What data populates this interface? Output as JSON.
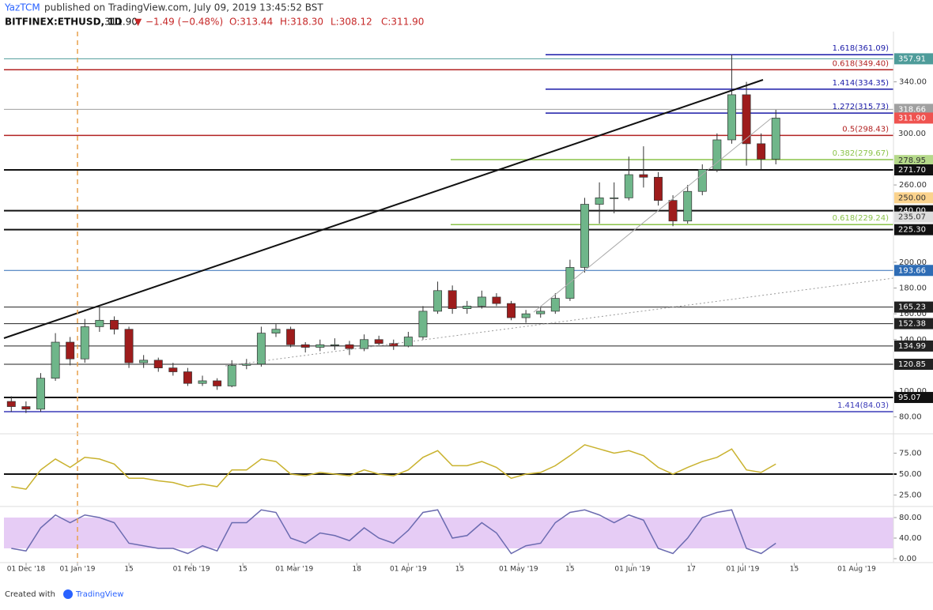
{
  "header": {
    "account": "YazTCM",
    "published": "published on TradingView.com, July 09, 2019 13:45:52 BST",
    "symbol": "BITFINEX:ETHUSD, 1D",
    "last": "311.90",
    "change": "−1.49 (−0.48%)",
    "ohlc": [
      "O:313.44",
      "H:318.30",
      "L:308.12",
      "C:311.90"
    ]
  },
  "footer": {
    "created": "Created with",
    "brand": "TradingView"
  },
  "chart_data": {
    "type": "candlestick",
    "x": [
      "2018-12-12",
      "2018-12-16",
      "2018-12-20",
      "2018-12-24",
      "2018-12-28",
      "2019-01-01",
      "2019-01-05",
      "2019-01-09",
      "2019-01-13",
      "2019-01-17",
      "2019-01-21",
      "2019-01-25",
      "2019-01-29",
      "2019-02-02",
      "2019-02-06",
      "2019-02-10",
      "2019-02-14",
      "2019-02-18",
      "2019-02-22",
      "2019-02-26",
      "2019-03-02",
      "2019-03-06",
      "2019-03-10",
      "2019-03-14",
      "2019-03-18",
      "2019-03-22",
      "2019-03-26",
      "2019-03-30",
      "2019-04-03",
      "2019-04-07",
      "2019-04-11",
      "2019-04-15",
      "2019-04-19",
      "2019-04-23",
      "2019-04-27",
      "2019-05-01",
      "2019-05-05",
      "2019-05-09",
      "2019-05-13",
      "2019-05-17",
      "2019-05-21",
      "2019-05-25",
      "2019-05-29",
      "2019-06-02",
      "2019-06-06",
      "2019-06-10",
      "2019-06-14",
      "2019-06-18",
      "2019-06-22",
      "2019-06-26",
      "2019-06-30",
      "2019-07-04",
      "2019-07-08"
    ],
    "open": [
      92,
      88,
      86,
      110,
      138,
      125,
      150,
      155,
      148,
      122,
      124,
      118,
      115,
      106,
      108,
      104,
      120,
      121,
      145,
      148,
      136,
      134,
      136,
      136,
      133,
      140,
      137,
      135,
      142,
      162,
      178,
      164,
      166,
      173,
      168,
      157,
      160,
      162,
      172,
      196,
      245,
      250,
      250,
      268,
      266,
      248,
      232,
      255,
      272,
      295,
      330,
      292,
      280
    ],
    "high": [
      96,
      92,
      114,
      145,
      142,
      156,
      165,
      158,
      150,
      128,
      126,
      122,
      118,
      112,
      110,
      124,
      125,
      150,
      152,
      150,
      138,
      140,
      141,
      139,
      144,
      143,
      140,
      146,
      166,
      185,
      182,
      170,
      178,
      176,
      170,
      163,
      166,
      176,
      202,
      250,
      262,
      262,
      282,
      290,
      270,
      252,
      260,
      276,
      300,
      361.09,
      340,
      300,
      318.3
    ],
    "low": [
      84,
      83,
      84,
      108,
      120,
      122,
      146,
      144,
      118,
      118,
      115,
      112,
      104,
      104,
      101,
      103,
      117,
      119,
      142,
      134,
      130,
      131,
      132,
      128,
      131,
      135,
      132,
      134,
      140,
      160,
      160,
      160,
      164,
      166,
      155,
      153,
      157,
      160,
      170,
      192,
      230,
      238,
      248,
      258,
      244,
      228,
      230,
      252,
      270,
      292,
      275,
      272,
      276
    ],
    "close": [
      88,
      86,
      110,
      138,
      125,
      150,
      155,
      148,
      122,
      124,
      118,
      115,
      106,
      108,
      104,
      120,
      121,
      145,
      148,
      136,
      134,
      136,
      136,
      133,
      140,
      137,
      135,
      142,
      162,
      178,
      164,
      166,
      173,
      168,
      157,
      160,
      162,
      172,
      196,
      245,
      250,
      250,
      268,
      266,
      248,
      232,
      255,
      272,
      295,
      330,
      292,
      280,
      311.9
    ],
    "up_color": "#6fb68a",
    "down_color": "#9e1c1c",
    "xlim": [
      "2018-12-12",
      "2019-08-11"
    ],
    "xticks": [
      {
        "value": "2018-12-01",
        "label": "01 Dec '18"
      },
      {
        "value": "2019-01-01",
        "label": "01 Jan '19"
      },
      {
        "value": "2019-01-15",
        "label": "15"
      },
      {
        "value": "2019-02-01",
        "label": "01 Feb '19"
      },
      {
        "value": "2019-02-15",
        "label": "15"
      },
      {
        "value": "2019-03-01",
        "label": "01 Mar '19"
      },
      {
        "value": "2019-03-18",
        "label": "18"
      },
      {
        "value": "2019-04-01",
        "label": "01 Apr '19"
      },
      {
        "value": "2019-04-15",
        "label": "15"
      },
      {
        "value": "2019-05-01",
        "label": "01 May '19"
      },
      {
        "value": "2019-05-15",
        "label": "15"
      },
      {
        "value": "2019-06-01",
        "label": "01 Jun '19"
      },
      {
        "value": "2019-06-17",
        "label": "17"
      },
      {
        "value": "2019-07-01",
        "label": "01 Jul '19"
      },
      {
        "value": "2019-07-15",
        "label": "15"
      },
      {
        "value": "2019-08-01",
        "label": "01 Aug '19"
      }
    ],
    "ylim": [
      67.5,
      379
    ],
    "yticks": [
      {
        "value": 80,
        "label": "80.00"
      },
      {
        "value": 100,
        "label": "100.00"
      },
      {
        "value": 140,
        "label": "140.00"
      },
      {
        "value": 160,
        "label": "160.00"
      },
      {
        "value": 180,
        "label": "180.00"
      },
      {
        "value": 200,
        "label": "200.00"
      },
      {
        "value": 260,
        "label": "260.00"
      },
      {
        "value": 300,
        "label": "300.00"
      },
      {
        "value": 340,
        "label": "340.00"
      }
    ],
    "levels": [
      {
        "value": 357.91,
        "label": "357.91",
        "color": "#4e9c9a",
        "line": true
      },
      {
        "value": 318.66,
        "label": "318.66",
        "color": "#a0a0a0",
        "line": true
      },
      {
        "value": 311.9,
        "label": "311.90",
        "color": "#ef5350",
        "line": false
      },
      {
        "value": 300,
        "label": "300.00",
        "color": "#ffffff",
        "line": false
      },
      {
        "value": 278.95,
        "label": "278.95",
        "color": "#b5d98a",
        "line": false
      },
      {
        "value": 271.7,
        "label": "271.70",
        "color": "#111111",
        "line": true
      },
      {
        "value": 250,
        "label": "250.00",
        "color": "#fbd38d",
        "line": false
      },
      {
        "value": 240,
        "label": "240.00",
        "color": "#111111",
        "line": true
      },
      {
        "value": 235.07,
        "label": "235.07",
        "color": "#dddddd",
        "line": false
      },
      {
        "value": 225.3,
        "label": "225.30",
        "color": "#111111",
        "line": true
      },
      {
        "value": 193.66,
        "label": "193.66",
        "color": "#2e6cb5",
        "line": true
      },
      {
        "value": 165.23,
        "label": "165.23",
        "color": "#222222",
        "line": true
      },
      {
        "value": 152.38,
        "label": "152.38",
        "color": "#222222",
        "line": true
      },
      {
        "value": 134.99,
        "label": "134.99",
        "color": "#222222",
        "line": true
      },
      {
        "value": 120.85,
        "label": "120.85",
        "color": "#222222",
        "line": true
      },
      {
        "value": 95.07,
        "label": "95.07",
        "color": "#111111",
        "line": true
      }
    ],
    "fib_levels": [
      {
        "value": 361.09,
        "label": "1.618(361.09)",
        "color": "#1a1aa8"
      },
      {
        "value": 349.4,
        "label": "0.618(349.40)",
        "color": "#b22222"
      },
      {
        "value": 334.35,
        "label": "1.414(334.35)",
        "color": "#1a1aa8"
      },
      {
        "value": 315.73,
        "label": "1.272(315.73)",
        "color": "#1a1aa8"
      },
      {
        "value": 298.43,
        "label": "0.5(298.43)",
        "color": "#b22222"
      },
      {
        "value": 279.67,
        "label": "0.382(279.67)",
        "color": "#8bc34a"
      },
      {
        "value": 229.24,
        "label": "0.618(229.24)",
        "color": "#8bc34a"
      },
      {
        "value": 84.03,
        "label": "1.414(84.03)",
        "color": "#3a3ab8"
      }
    ],
    "rsi": {
      "values": [
        35,
        32,
        55,
        68,
        58,
        70,
        68,
        62,
        45,
        45,
        42,
        40,
        35,
        38,
        35,
        55,
        55,
        68,
        65,
        50,
        48,
        52,
        50,
        48,
        55,
        50,
        48,
        55,
        70,
        78,
        60,
        60,
        65,
        58,
        45,
        50,
        52,
        60,
        72,
        85,
        80,
        75,
        78,
        72,
        58,
        50,
        58,
        65,
        70,
        80,
        55,
        52,
        62
      ],
      "color": "#c9b22e",
      "ylim": [
        0,
        100
      ],
      "yticks": [
        {
          "value": 25,
          "label": "25.00"
        },
        {
          "value": 50,
          "label": "50.00"
        },
        {
          "value": 75,
          "label": "75.00"
        }
      ]
    },
    "stoch": {
      "values": [
        20,
        15,
        60,
        85,
        70,
        85,
        80,
        70,
        30,
        25,
        20,
        20,
        10,
        25,
        15,
        70,
        70,
        95,
        90,
        40,
        30,
        50,
        45,
        35,
        60,
        40,
        30,
        55,
        90,
        95,
        40,
        45,
        70,
        50,
        10,
        25,
        30,
        70,
        90,
        95,
        85,
        70,
        85,
        75,
        20,
        10,
        40,
        80,
        90,
        95,
        20,
        10,
        30
      ],
      "color": "#6b6bb0",
      "band": [
        20,
        80
      ],
      "ylim": [
        0,
        100
      ],
      "yticks": [
        {
          "value": 0,
          "label": "0.00"
        },
        {
          "value": 40,
          "label": "40.00"
        },
        {
          "value": 80,
          "label": "80.00"
        }
      ]
    }
  }
}
